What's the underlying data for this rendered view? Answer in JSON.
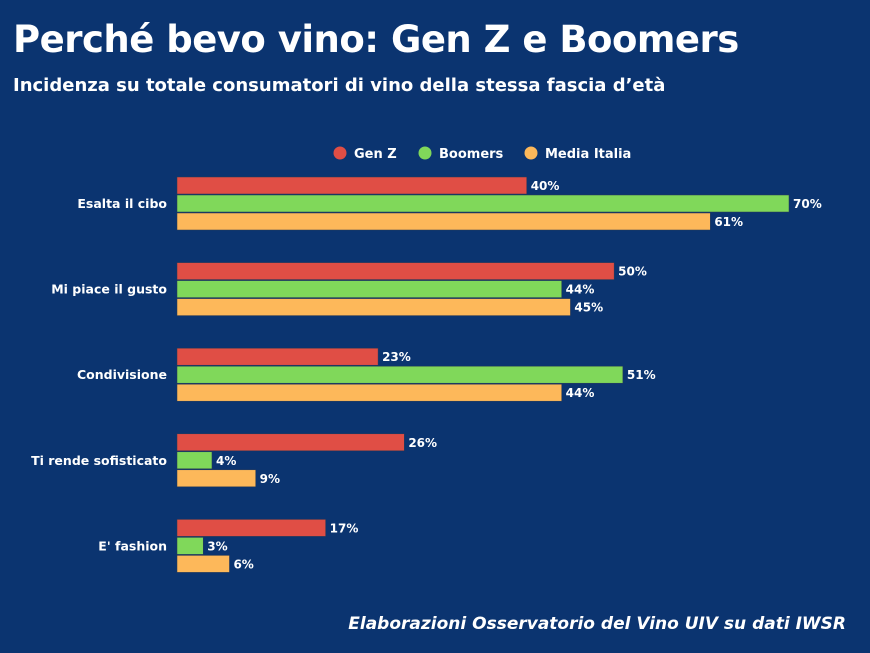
{
  "chart_data": {
    "type": "bar",
    "orientation": "horizontal",
    "title": "Perché bevo vino: Gen Z e Boomers",
    "subtitle": "Incidenza su totale consumatori di vino della stessa fascia d’età",
    "source": "Elaborazioni Osservatorio del Vino UIV su dati IWSR",
    "categories": [
      "Esalta il cibo",
      "Mi piace il gusto",
      "Condivisione",
      "Ti rende sofisticato",
      "E' fashion"
    ],
    "series": [
      {
        "name": "Gen Z",
        "color": "#e04e45",
        "values": [
          40,
          50,
          23,
          26,
          17
        ]
      },
      {
        "name": "Boomers",
        "color": "#80d85a",
        "values": [
          70,
          44,
          51,
          4,
          3
        ]
      },
      {
        "name": "Media Italia",
        "color": "#fdb85a",
        "values": [
          61,
          45,
          44,
          9,
          6
        ]
      }
    ],
    "value_format": "%",
    "xlim": [
      0,
      70
    ],
    "grid": false,
    "legend_position": "top",
    "background": "#0b3470"
  }
}
